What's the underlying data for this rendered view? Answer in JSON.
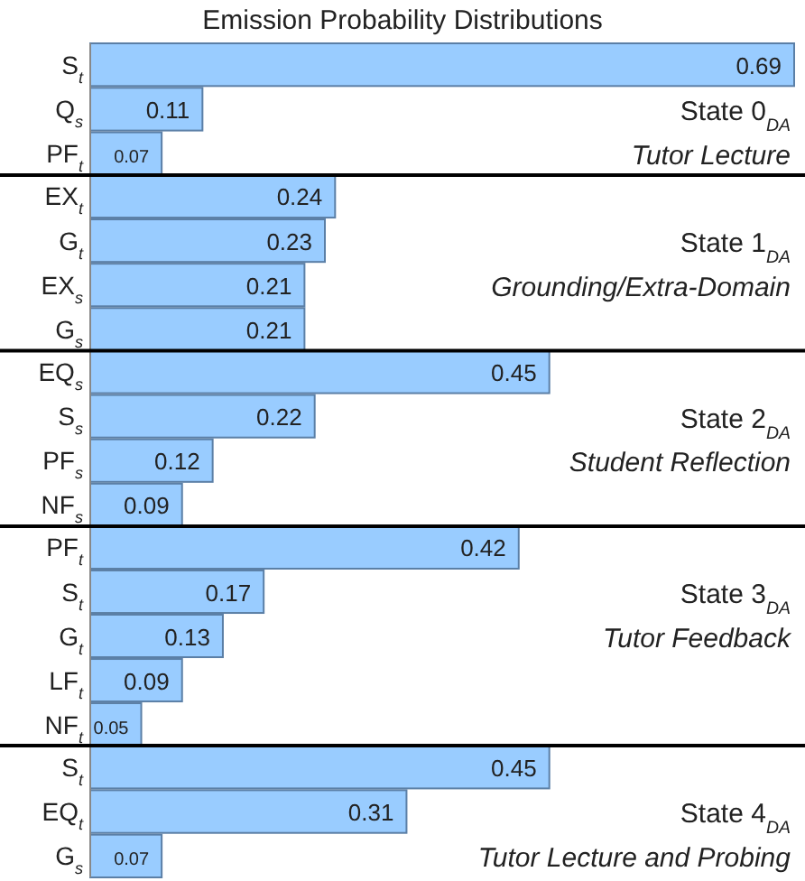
{
  "chart_data": [
    {
      "type": "bar",
      "orientation": "horizontal",
      "title": "Emission Probability Distributions",
      "categories": [
        "S$_{t}$",
        "Q$_{s}$",
        "PF$_{t}$"
      ],
      "values": [
        0.69,
        0.11,
        0.07
      ],
      "color": "#99ccff",
      "tick_labels": "y",
      "data_labels": true,
      "annotations": [
        "State 0$_{DA}$",
        "Tutor Lecture"
      ]
    },
    {
      "type": "bar",
      "orientation": "horizontal",
      "categories": [
        "EX$_{t}$",
        "G$_{t}$",
        "EX$_{s}$",
        "G$_{s}$"
      ],
      "values": [
        0.24,
        0.23,
        0.21,
        0.21
      ],
      "color": "#99ccff",
      "tick_labels": "y",
      "data_labels": true,
      "annotations": [
        "State 1$_{DA}$",
        "Grounding/Extra-Domain"
      ]
    },
    {
      "type": "bar",
      "orientation": "horizontal",
      "categories": [
        "EQ$_{s}$",
        "S$_{s}$",
        "PF$_{s}$",
        "NF$_{s}$"
      ],
      "values": [
        0.45,
        0.22,
        0.12,
        0.09
      ],
      "color": "#99ccff",
      "tick_labels": "y",
      "data_labels": true,
      "annotations": [
        "State 2$_{DA}$",
        "Student Reflection"
      ]
    },
    {
      "type": "bar",
      "orientation": "horizontal",
      "categories": [
        "PF$_{t}$",
        "S$_{t}$",
        "G$_{t}$",
        "LF$_{t}$",
        "NF$_{t}$"
      ],
      "values": [
        0.42,
        0.17,
        0.13,
        0.09,
        0.05
      ],
      "color": "#99ccff",
      "tick_labels": "y",
      "data_labels": true,
      "annotations": [
        "State 3$_{DA}$",
        "Tutor Feedback"
      ]
    },
    {
      "type": "bar",
      "orientation": "horizontal",
      "categories": [
        "S$_{t}$",
        "EQ$_{t}$",
        "G$_{s}$"
      ],
      "values": [
        0.45,
        0.31,
        0.07
      ],
      "color": "#99ccff",
      "tick_labels": "y",
      "data_labels": true,
      "annotations": [
        "State 4$_{DA}$",
        "Tutor Lecture and Probing"
      ]
    }
  ]
}
